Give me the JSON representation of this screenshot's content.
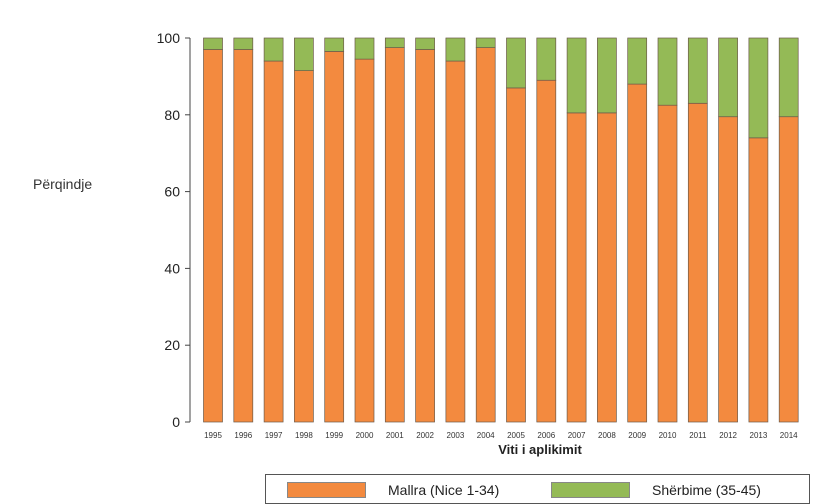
{
  "chart_data": {
    "type": "bar",
    "stacked": true,
    "title": "",
    "ylabel": "Përqindje",
    "xlabel": "Viti i aplikimit",
    "ylim": [
      0,
      100
    ],
    "yticks": [
      "0",
      "20",
      "40",
      "60",
      "80",
      "100"
    ],
    "grid": false,
    "legend_position": "bottom",
    "categories": [
      "1995",
      "1996",
      "1997",
      "1998",
      "1999",
      "2000",
      "2001",
      "2002",
      "2003",
      "2004",
      "2005",
      "2006",
      "2007",
      "2008",
      "2009",
      "2010",
      "2011",
      "2012",
      "2013",
      "2014"
    ],
    "series": [
      {
        "name": "Mallra (Nice 1-34)",
        "color": "#f38a3f",
        "values": [
          97,
          97,
          94,
          91.5,
          96.5,
          94.5,
          97.5,
          97,
          94,
          97.5,
          87,
          89,
          80.5,
          80.5,
          88,
          82.5,
          83,
          79.5,
          74,
          79.5
        ]
      },
      {
        "name": "Shërbime (35-45)",
        "color": "#94ba56",
        "values": [
          3,
          3,
          6,
          8.5,
          3.5,
          5.5,
          2.5,
          3,
          6,
          2.5,
          13,
          11,
          19.5,
          19.5,
          12,
          17.5,
          17,
          20.5,
          26,
          20.5
        ]
      }
    ]
  }
}
